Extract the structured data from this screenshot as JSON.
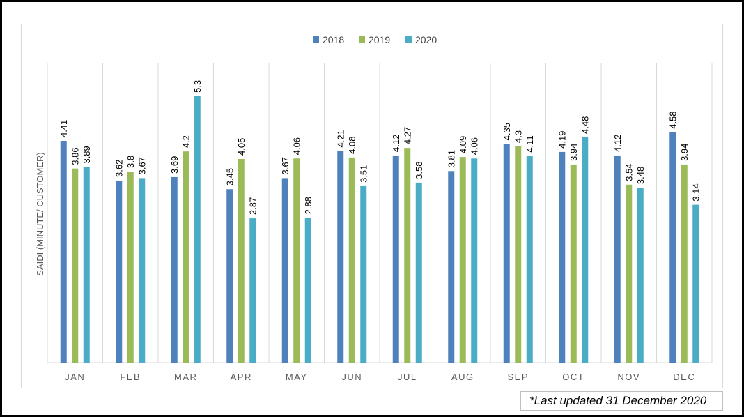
{
  "chart_data": {
    "type": "bar",
    "ylabel": "SAIDI (MINUTE/ CUSTOMER)",
    "xlabel": "",
    "categories": [
      "JAN",
      "FEB",
      "MAR",
      "APR",
      "MAY",
      "JUN",
      "JUL",
      "AUG",
      "SEP",
      "OCT",
      "NOV",
      "DEC"
    ],
    "series": [
      {
        "name": "2018",
        "color": "#4f81bd",
        "values": [
          4.41,
          3.62,
          3.69,
          3.45,
          3.67,
          4.21,
          4.12,
          3.81,
          4.35,
          4.19,
          4.12,
          4.58
        ]
      },
      {
        "name": "2019",
        "color": "#9bbb59",
        "values": [
          3.86,
          3.8,
          4.2,
          4.05,
          4.06,
          4.08,
          4.27,
          4.09,
          4.3,
          3.94,
          3.54,
          3.94
        ]
      },
      {
        "name": "2020",
        "color": "#4bacc6",
        "values": [
          3.89,
          3.67,
          5.3,
          2.87,
          2.88,
          3.51,
          3.58,
          4.06,
          4.11,
          4.48,
          3.48,
          3.14
        ]
      }
    ],
    "ylim": [
      0,
      5.5
    ],
    "grid": "vertical separators between categories",
    "legend": "top-center",
    "data_labels": true
  },
  "note": {
    "text": "*Last updated 31 December 2020"
  }
}
